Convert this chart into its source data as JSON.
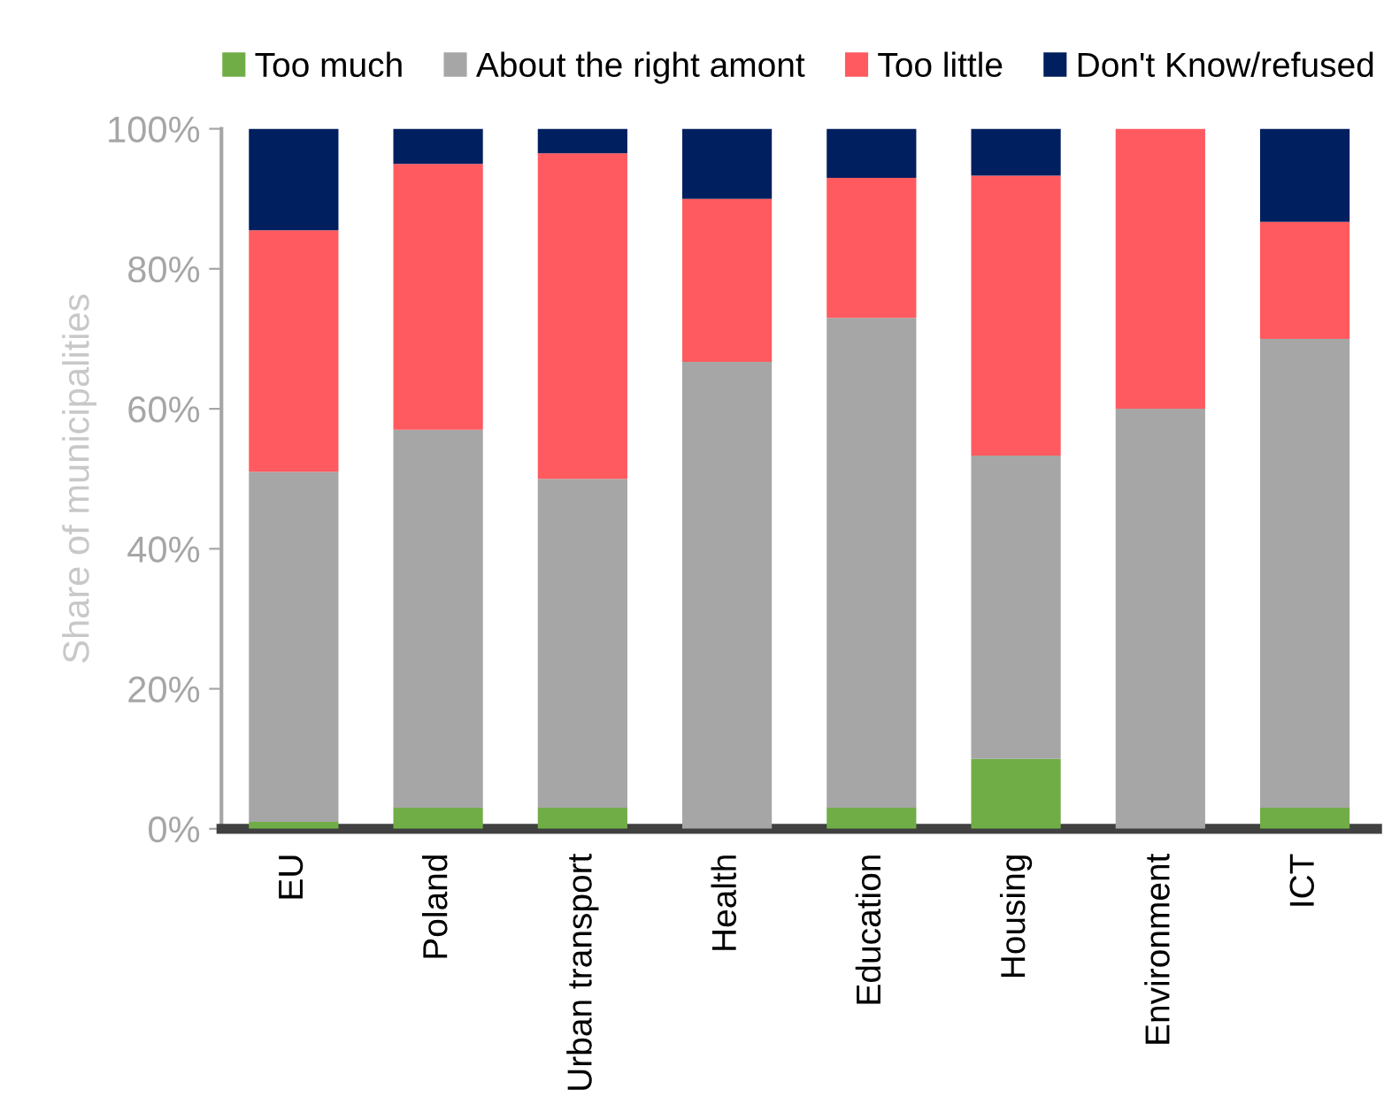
{
  "chart_data": {
    "type": "bar",
    "stacked": true,
    "ylabel": "Share of municipalities",
    "categories": [
      "EU",
      "Poland",
      "Urban transport",
      "Health",
      "Education",
      "Housing",
      "Environment",
      "ICT"
    ],
    "series": [
      {
        "name": "Too much",
        "color": "#70ad47",
        "values": [
          1,
          3,
          3,
          0,
          3,
          10,
          0,
          3
        ]
      },
      {
        "name": "About the right amont",
        "color": "#a6a6a6",
        "values": [
          50,
          54,
          47,
          66.7,
          70,
          43.3,
          60,
          67
        ]
      },
      {
        "name": "Too little",
        "color": "#ff5a5f",
        "values": [
          34.5,
          38,
          46.5,
          23.3,
          20,
          40,
          40,
          16.7
        ]
      },
      {
        "name": "Don't Know/refused",
        "color": "#001f5f",
        "values": [
          14.5,
          5,
          3.5,
          10,
          7,
          6.7,
          0,
          13.3
        ]
      }
    ],
    "ylim": [
      0,
      100
    ],
    "yticks": [
      {
        "value": 0,
        "label": "0%"
      },
      {
        "value": 20,
        "label": "20%"
      },
      {
        "value": 40,
        "label": "40%"
      },
      {
        "value": 60,
        "label": "60%"
      },
      {
        "value": 80,
        "label": "80%"
      },
      {
        "value": 100,
        "label": "100%"
      }
    ],
    "grid": false,
    "legend": "top"
  }
}
